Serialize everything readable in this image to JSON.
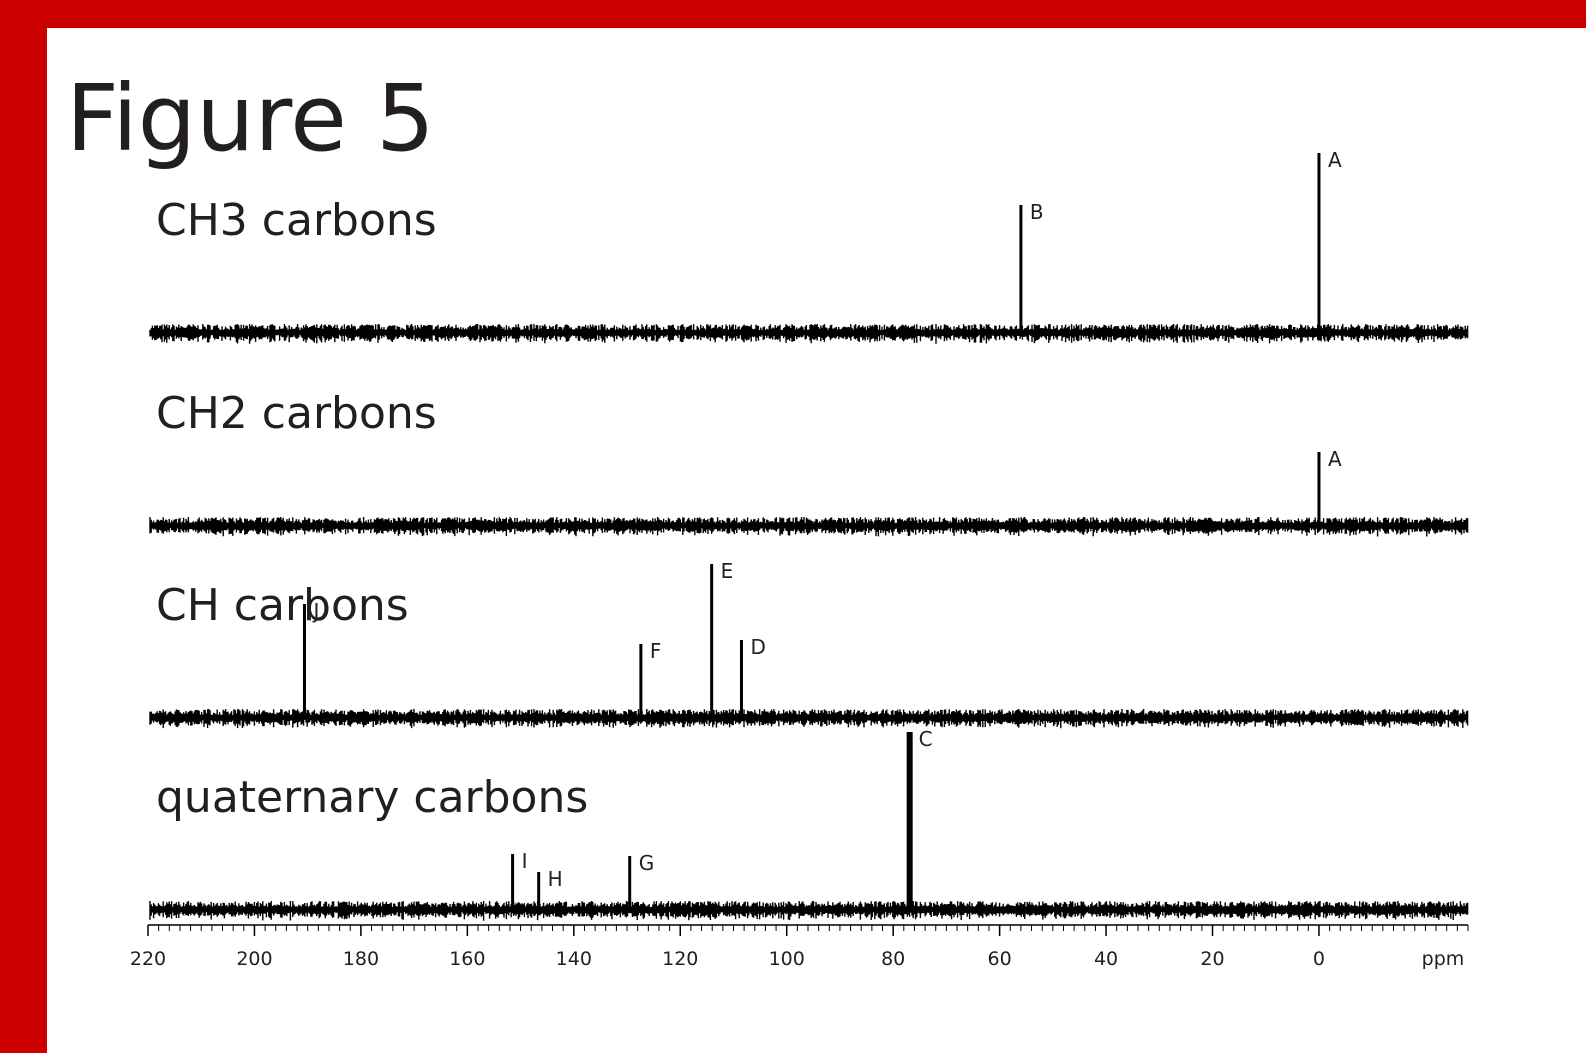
{
  "chart_data": {
    "type": "spectrum",
    "title": "Figure 5",
    "x_label": "ppm",
    "xlim": [
      220,
      -28
    ],
    "xticks": [
      220,
      200,
      180,
      160,
      140,
      120,
      100,
      80,
      60,
      40,
      20,
      0
    ],
    "ylim": [
      0,
      1
    ],
    "color": "#000000",
    "series": [
      {
        "name": "CH3 carbons",
        "x": [
          56,
          0
        ],
        "values": [
          0.64,
          0.9
        ],
        "peak_labels": [
          "B",
          "A"
        ]
      },
      {
        "name": "CH2 carbons",
        "x": [
          0
        ],
        "values": [
          0.37
        ],
        "peak_labels": [
          "A"
        ]
      },
      {
        "name": "CH carbons",
        "x": [
          190.6,
          127.4,
          114.1,
          108.5
        ],
        "values": [
          0.57,
          0.37,
          0.77,
          0.39
        ],
        "peak_labels": [
          "J",
          "F",
          "E",
          "D"
        ]
      },
      {
        "name": "quaternary carbons",
        "x": [
          151.5,
          146.6,
          129.5,
          76.9
        ],
        "values": [
          0.28,
          0.19,
          0.27,
          0.89
        ],
        "peak_labels": [
          "I",
          "H",
          "G",
          "C"
        ]
      }
    ]
  }
}
